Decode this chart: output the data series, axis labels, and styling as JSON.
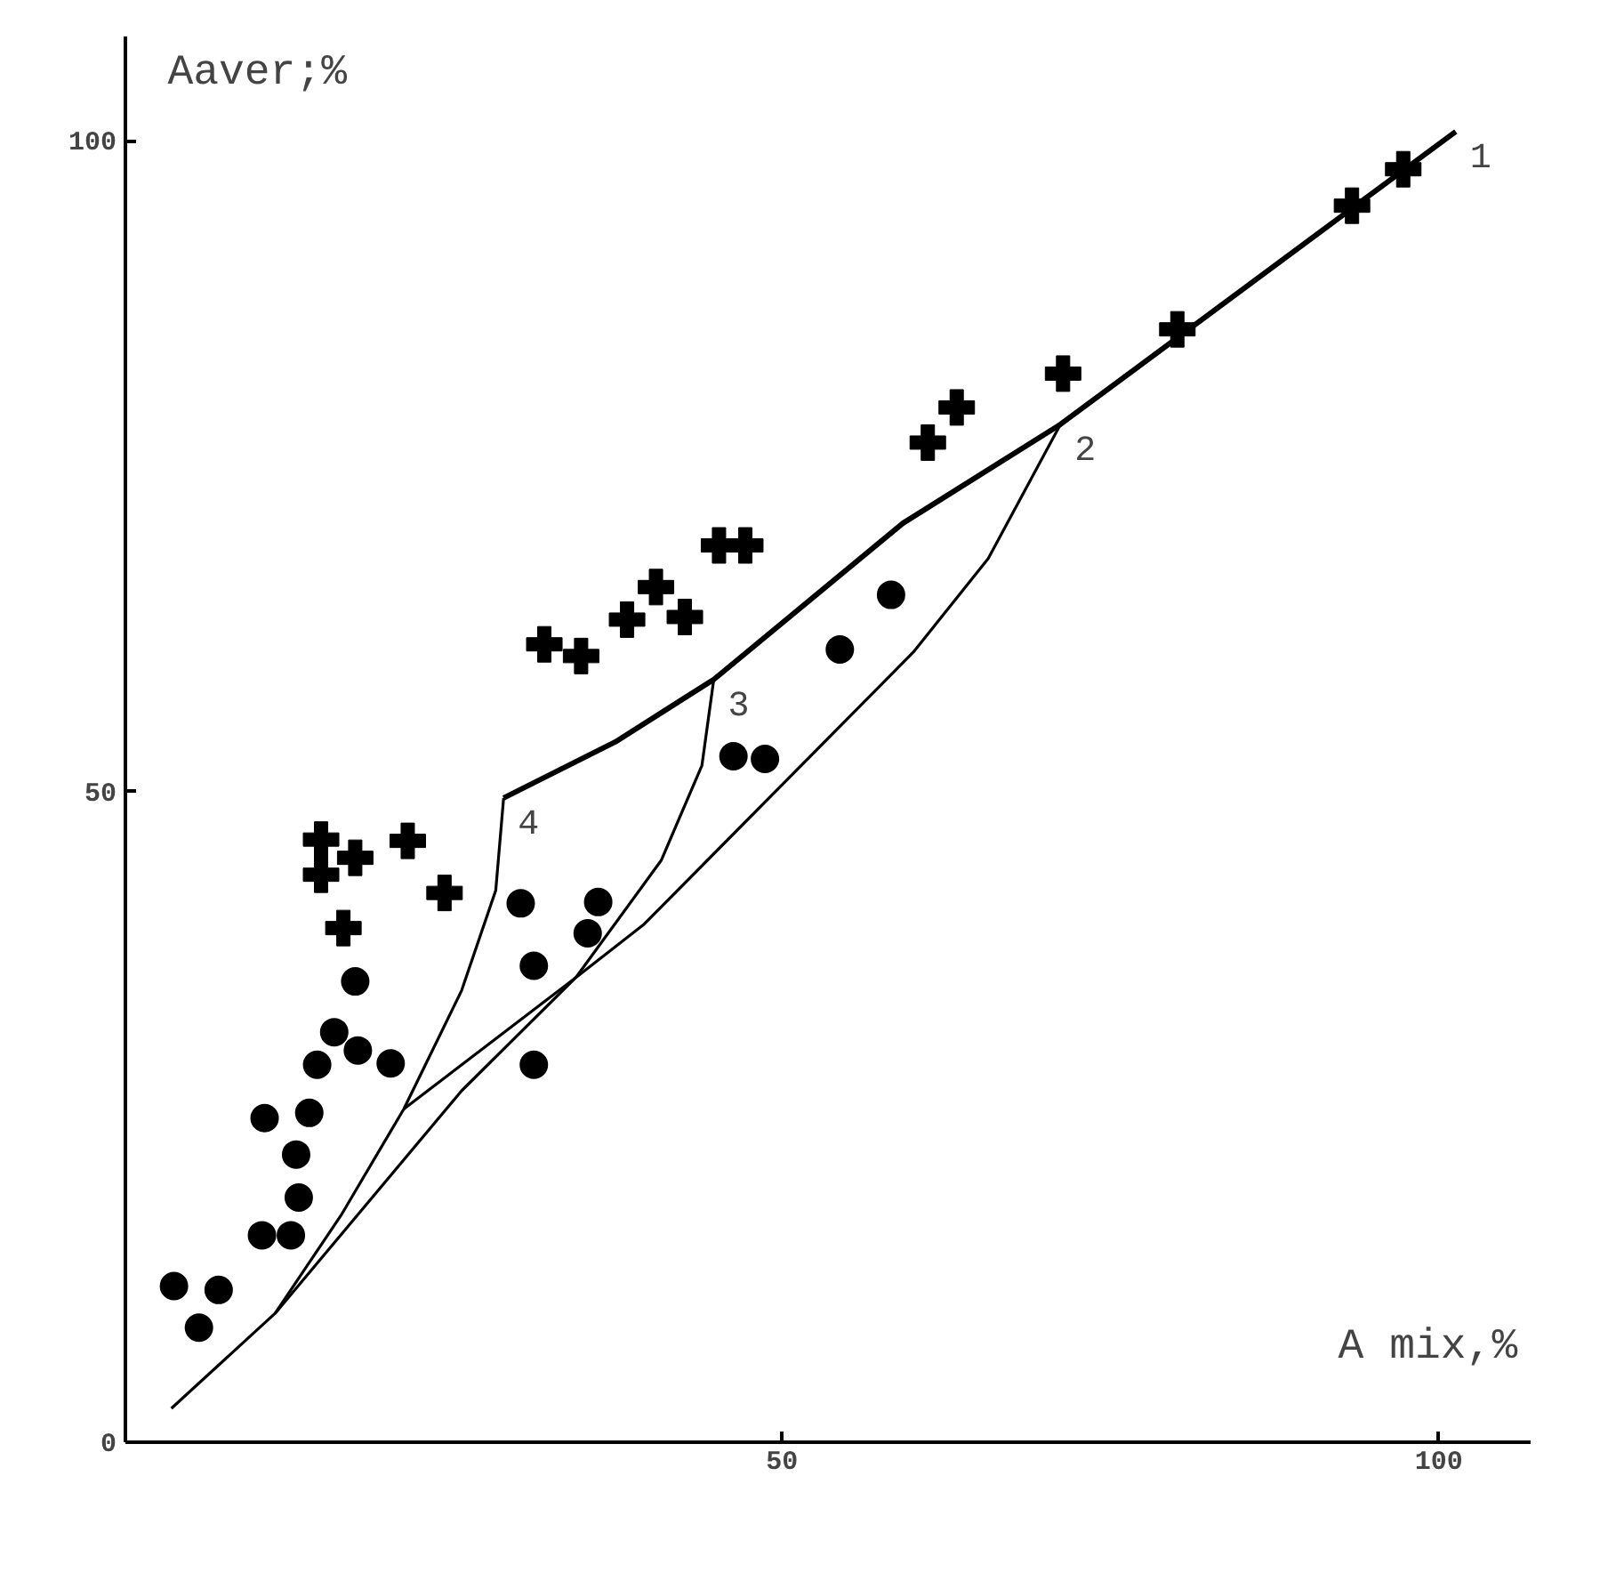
{
  "chart_data": {
    "type": "scatter",
    "xlabel": "A mix,%",
    "ylabel": "Aaver;%",
    "xlim": [
      0,
      107
    ],
    "ylim": [
      0,
      108
    ],
    "xticks": [
      50,
      100
    ],
    "yticks": [
      0,
      50,
      100
    ],
    "grid": false,
    "series": [
      {
        "marker": "cross",
        "color": "#000000",
        "x": [
          97.3,
          93.4,
          80.1,
          71.4,
          63.3,
          61.1,
          45.2,
          47.2,
          40.4,
          38.2,
          42.6,
          31.9,
          34.7,
          14.9,
          17.5,
          14.9,
          21.5,
          24.3,
          16.6
        ],
        "values": [
          97.8,
          95.0,
          85.5,
          82.1,
          79.5,
          76.8,
          68.9,
          68.9,
          65.7,
          63.2,
          63.4,
          61.3,
          60.4,
          46.3,
          44.9,
          43.6,
          46.2,
          42.2,
          39.5
        ]
      },
      {
        "marker": "circle",
        "color": "#000000",
        "x": [
          58.3,
          54.4,
          46.3,
          48.7,
          30.1,
          36.0,
          35.2,
          31.1,
          31.1,
          17.5,
          15.9,
          17.7,
          20.2,
          14.6,
          14.0,
          10.6,
          13.0,
          13.2,
          10.4,
          12.6,
          3.7,
          7.1,
          5.6
        ],
        "values": [
          65.1,
          60.9,
          52.7,
          52.5,
          41.4,
          41.5,
          39.1,
          36.6,
          29.0,
          35.4,
          31.5,
          30.1,
          29.1,
          29.0,
          25.3,
          24.9,
          22.1,
          18.8,
          15.9,
          15.9,
          12.0,
          11.7,
          8.8
        ]
      },
      {
        "type": "line",
        "line_style": "solid",
        "color": "#000000",
        "x": [
          28.8,
          37.3,
          44.8,
          59.2,
          71.2,
          101.3
        ],
        "values": [
          49.5,
          53.8,
          58.6,
          70.6,
          78.2,
          100.7
        ]
      },
      {
        "type": "line",
        "line_style": "solid",
        "color": "#000000",
        "x": [
          3.5,
          11.4,
          16.4,
          21.2,
          25.6,
          28.2,
          28.8
        ],
        "values": [
          2.6,
          9.9,
          17.4,
          25.6,
          34.7,
          42.4,
          49.5
        ]
      },
      {
        "type": "line",
        "line_style": "solid",
        "color": "#000000",
        "x": [
          11.4,
          25.6,
          34.3,
          40.8,
          43.9,
          44.8
        ],
        "values": [
          9.9,
          27.0,
          35.7,
          44.7,
          52.0,
          58.6
        ]
      },
      {
        "type": "line",
        "line_style": "solid",
        "color": "#000000",
        "x": [
          21.2,
          34.3,
          39.5,
          60.0,
          65.7,
          71.2
        ],
        "values": [
          25.6,
          35.7,
          39.8,
          60.7,
          67.9,
          78.2
        ]
      }
    ],
    "annotations": [
      {
        "text": "1",
        "x": 101.3,
        "y": 100.7
      },
      {
        "text": "2",
        "x": 71.2,
        "y": 78.2
      },
      {
        "text": "3",
        "x": 44.8,
        "y": 58.6
      },
      {
        "text": "4",
        "x": 28.8,
        "y": 49.5
      }
    ]
  }
}
